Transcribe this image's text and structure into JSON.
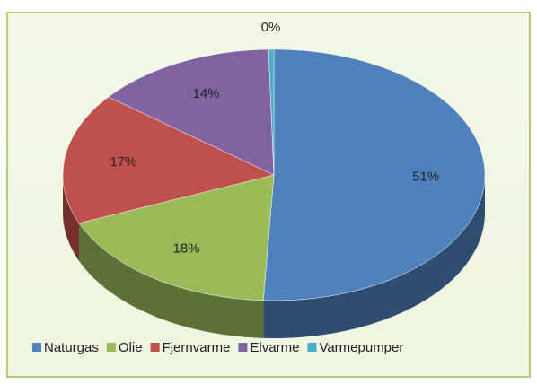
{
  "chart_data": {
    "type": "pie",
    "categories": [
      "Naturgas",
      "Olie",
      "Fjernvarme",
      "Elvarme",
      "Varmepumper"
    ],
    "values": [
      51,
      18,
      17,
      14,
      0.4
    ],
    "value_labels": [
      "51%",
      "18%",
      "17%",
      "14%",
      "0%"
    ],
    "colors": [
      "#4f81bd",
      "#9bbb59",
      "#c0504d",
      "#8064a2",
      "#4bacc6"
    ],
    "legend": "bottom"
  }
}
